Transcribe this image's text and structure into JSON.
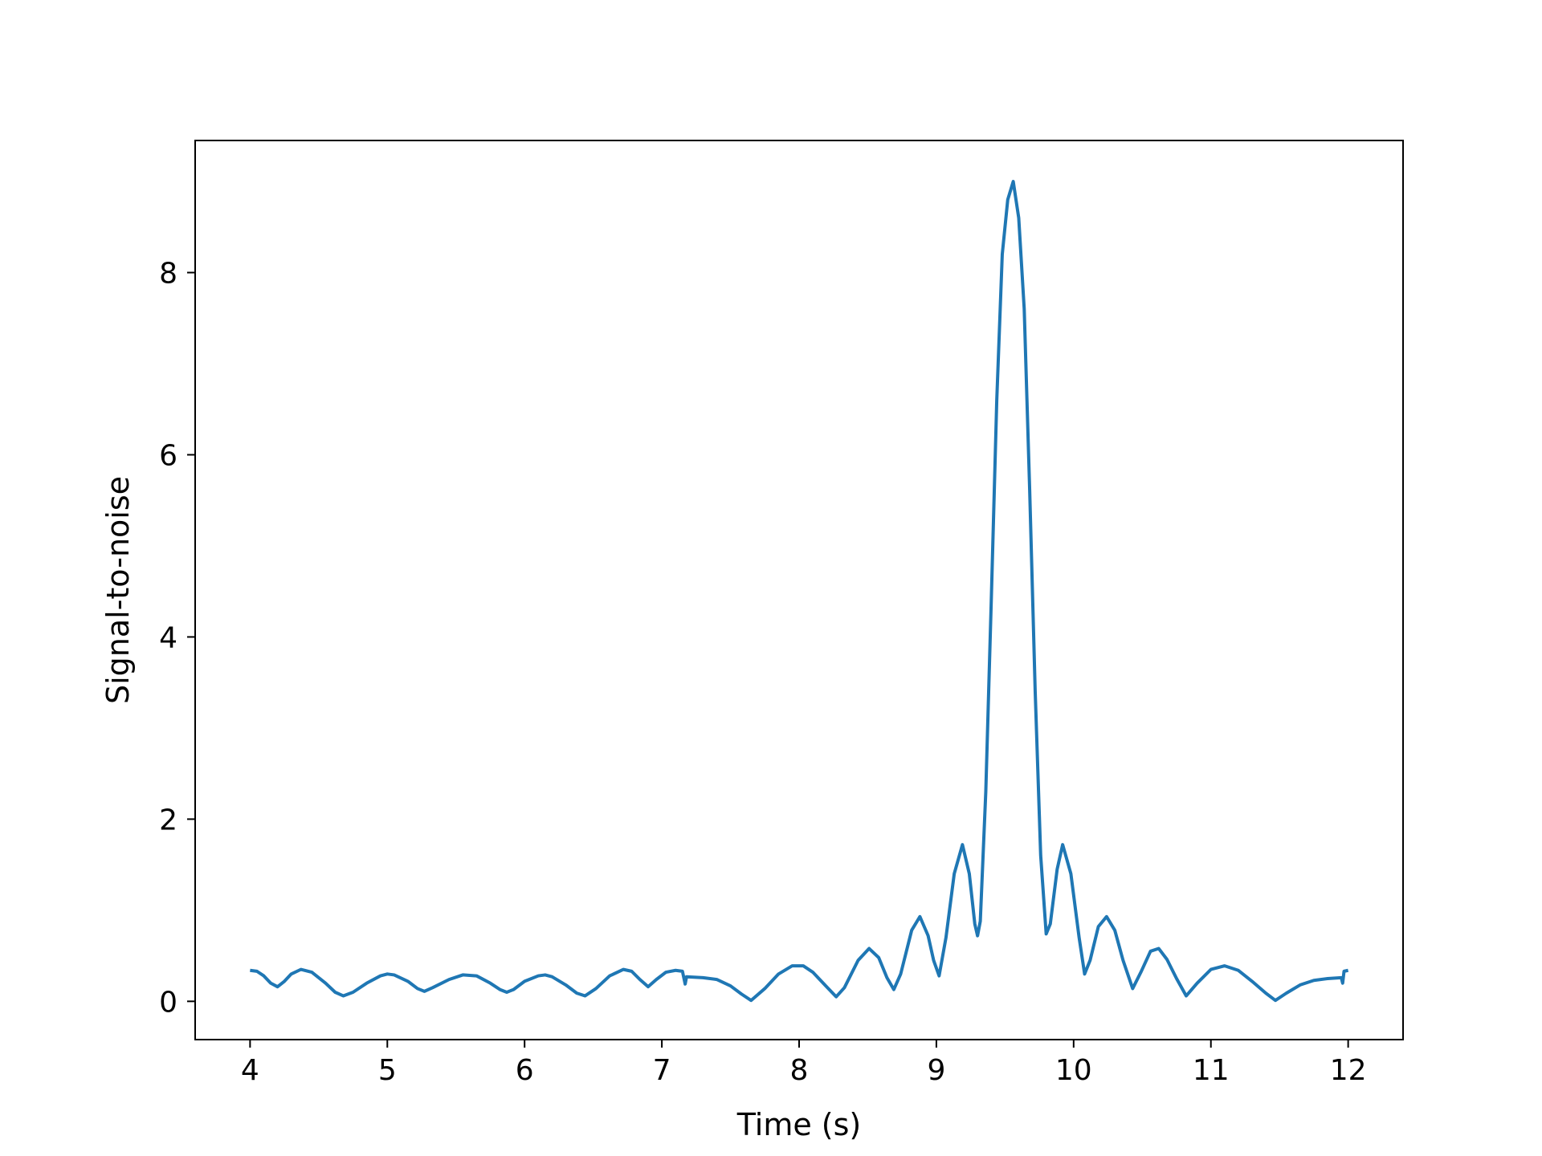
{
  "chart_data": {
    "type": "line",
    "title": "",
    "xlabel": "Time (s)",
    "ylabel": "Signal-to-noise",
    "xlim": [
      3.6,
      12.4
    ],
    "ylim": [
      -0.42,
      9.45
    ],
    "grid": false,
    "xticks": [
      4,
      5,
      6,
      7,
      8,
      9,
      10,
      11,
      12
    ],
    "xtick_labels": [
      "4",
      "5",
      "6",
      "7",
      "8",
      "9",
      "10",
      "11",
      "12"
    ],
    "yticks": [
      0,
      2,
      4,
      6,
      8
    ],
    "ytick_labels": [
      "0",
      "2",
      "4",
      "6",
      "8"
    ],
    "series": [
      {
        "color": "#1f77b4",
        "points": [
          [
            4.0,
            0.34
          ],
          [
            4.05,
            0.33
          ],
          [
            4.1,
            0.28
          ],
          [
            4.15,
            0.2
          ],
          [
            4.2,
            0.16
          ],
          [
            4.25,
            0.22
          ],
          [
            4.3,
            0.3
          ],
          [
            4.37,
            0.35
          ],
          [
            4.45,
            0.32
          ],
          [
            4.55,
            0.2
          ],
          [
            4.62,
            0.1
          ],
          [
            4.68,
            0.06
          ],
          [
            4.75,
            0.1
          ],
          [
            4.85,
            0.2
          ],
          [
            4.95,
            0.28
          ],
          [
            5.0,
            0.3
          ],
          [
            5.05,
            0.29
          ],
          [
            5.15,
            0.22
          ],
          [
            5.22,
            0.14
          ],
          [
            5.27,
            0.11
          ],
          [
            5.33,
            0.15
          ],
          [
            5.45,
            0.24
          ],
          [
            5.55,
            0.29
          ],
          [
            5.65,
            0.28
          ],
          [
            5.75,
            0.2
          ],
          [
            5.82,
            0.13
          ],
          [
            5.87,
            0.1
          ],
          [
            5.92,
            0.13
          ],
          [
            6.0,
            0.22
          ],
          [
            6.1,
            0.28
          ],
          [
            6.15,
            0.29
          ],
          [
            6.2,
            0.27
          ],
          [
            6.3,
            0.18
          ],
          [
            6.38,
            0.09
          ],
          [
            6.44,
            0.06
          ],
          [
            6.52,
            0.14
          ],
          [
            6.62,
            0.28
          ],
          [
            6.72,
            0.35
          ],
          [
            6.78,
            0.33
          ],
          [
            6.84,
            0.24
          ],
          [
            6.9,
            0.16
          ],
          [
            6.96,
            0.24
          ],
          [
            7.03,
            0.32
          ],
          [
            7.1,
            0.34
          ],
          [
            7.15,
            0.33
          ],
          [
            7.17,
            0.19
          ],
          [
            7.18,
            0.27
          ],
          [
            7.3,
            0.26
          ],
          [
            7.4,
            0.24
          ],
          [
            7.5,
            0.17
          ],
          [
            7.58,
            0.08
          ],
          [
            7.65,
            0.01
          ],
          [
            7.75,
            0.14
          ],
          [
            7.85,
            0.3
          ],
          [
            7.95,
            0.39
          ],
          [
            8.03,
            0.39
          ],
          [
            8.1,
            0.32
          ],
          [
            8.2,
            0.16
          ],
          [
            8.27,
            0.05
          ],
          [
            8.33,
            0.15
          ],
          [
            8.43,
            0.45
          ],
          [
            8.51,
            0.58
          ],
          [
            8.58,
            0.48
          ],
          [
            8.64,
            0.26
          ],
          [
            8.69,
            0.13
          ],
          [
            8.74,
            0.3
          ],
          [
            8.82,
            0.78
          ],
          [
            8.88,
            0.93
          ],
          [
            8.94,
            0.72
          ],
          [
            8.98,
            0.45
          ],
          [
            9.02,
            0.28
          ],
          [
            9.07,
            0.7
          ],
          [
            9.13,
            1.4
          ],
          [
            9.19,
            1.72
          ],
          [
            9.24,
            1.4
          ],
          [
            9.28,
            0.85
          ],
          [
            9.3,
            0.72
          ],
          [
            9.32,
            0.88
          ],
          [
            9.36,
            2.3
          ],
          [
            9.4,
            4.4
          ],
          [
            9.44,
            6.6
          ],
          [
            9.48,
            8.2
          ],
          [
            9.52,
            8.8
          ],
          [
            9.56,
            9.0
          ],
          [
            9.6,
            8.6
          ],
          [
            9.64,
            7.6
          ],
          [
            9.68,
            5.6
          ],
          [
            9.72,
            3.4
          ],
          [
            9.76,
            1.6
          ],
          [
            9.8,
            0.74
          ],
          [
            9.83,
            0.85
          ],
          [
            9.88,
            1.45
          ],
          [
            9.92,
            1.72
          ],
          [
            9.98,
            1.4
          ],
          [
            10.04,
            0.7
          ],
          [
            10.08,
            0.3
          ],
          [
            10.12,
            0.45
          ],
          [
            10.18,
            0.82
          ],
          [
            10.24,
            0.93
          ],
          [
            10.3,
            0.78
          ],
          [
            10.36,
            0.45
          ],
          [
            10.43,
            0.14
          ],
          [
            10.49,
            0.32
          ],
          [
            10.56,
            0.55
          ],
          [
            10.62,
            0.58
          ],
          [
            10.68,
            0.46
          ],
          [
            10.75,
            0.25
          ],
          [
            10.82,
            0.06
          ],
          [
            10.9,
            0.2
          ],
          [
            11.0,
            0.35
          ],
          [
            11.1,
            0.39
          ],
          [
            11.2,
            0.34
          ],
          [
            11.3,
            0.22
          ],
          [
            11.4,
            0.09
          ],
          [
            11.47,
            0.01
          ],
          [
            11.55,
            0.09
          ],
          [
            11.65,
            0.18
          ],
          [
            11.75,
            0.23
          ],
          [
            11.85,
            0.25
          ],
          [
            11.95,
            0.26
          ],
          [
            11.96,
            0.2
          ],
          [
            11.97,
            0.33
          ],
          [
            12.0,
            0.34
          ]
        ]
      }
    ]
  }
}
